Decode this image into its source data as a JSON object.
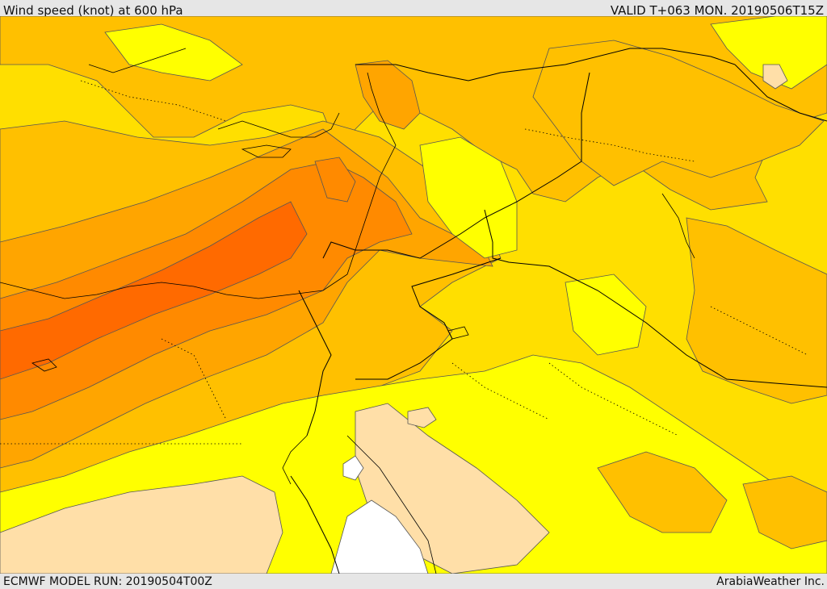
{
  "header": {
    "title": "Wind speed (knot) at 600 hPa",
    "valid_time": "VALID T+063 MON. 20190506T15Z"
  },
  "footer": {
    "model_run": "ECMWF MODEL RUN: 20190504T00Z",
    "credit": "ArabiaWeather Inc."
  },
  "map": {
    "colors": {
      "band_lightest": "#ffdfa8",
      "band_yellow": "#ffff00",
      "band_yellow_orange": "#ffdf00",
      "band_orange_1": "#ffc000",
      "band_orange_2": "#ffa500",
      "band_orange_3": "#ff8a00",
      "band_orange_4": "#ff6a00",
      "calm_white": "#ffffff",
      "contour": "#555555",
      "border": "#000000"
    }
  }
}
